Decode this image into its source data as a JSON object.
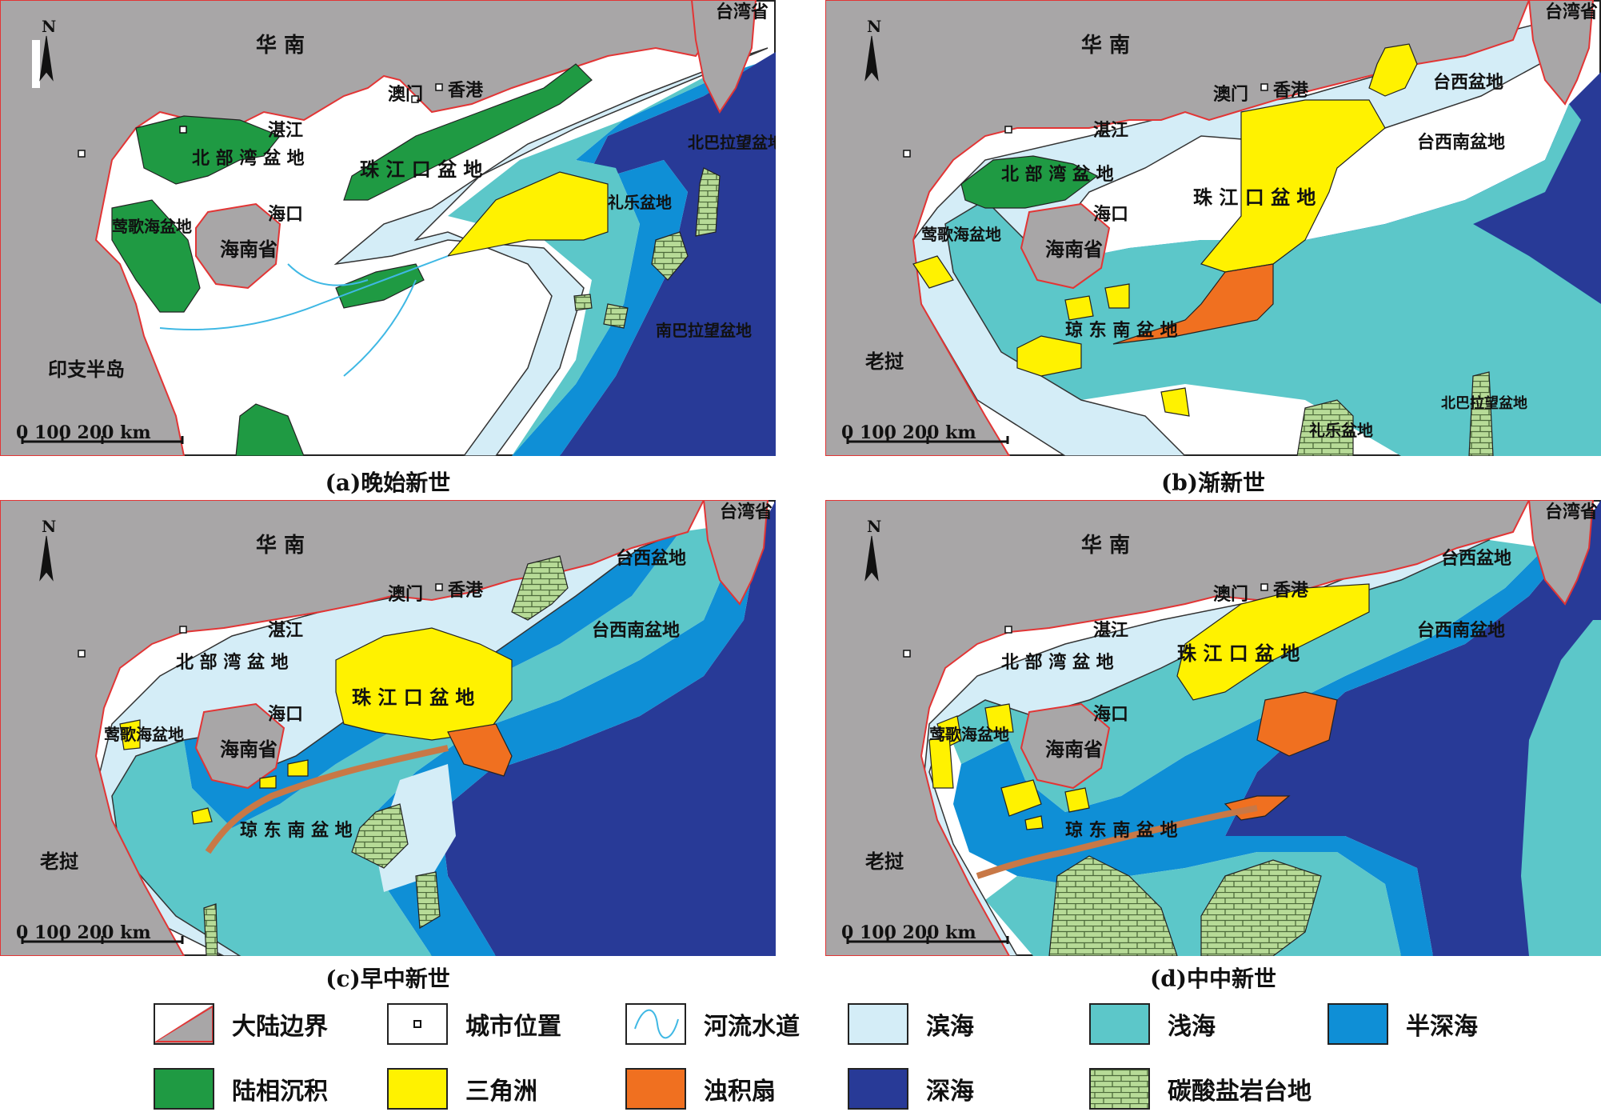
{
  "colors": {
    "land": "#a8a6a7",
    "coastal": "#d4edf7",
    "shallow": "#5cc7c9",
    "semideep": "#0f8fd6",
    "deep": "#283a97",
    "continental": "#1f9a43",
    "delta": "#fff200",
    "turbidite": "#f07020",
    "carbonate": "#b7db97",
    "river": "#3fb8e4",
    "border": "#e23535"
  },
  "panels": [
    {
      "caption": "(a)晚始新世",
      "labels": {
        "south_china": "华 南",
        "hongkong": "香港",
        "macau": "澳门",
        "zhanjiang": "湛江",
        "haikou": "海口",
        "hainan": "海南省",
        "taiwan": "台湾省",
        "indochina": "印支半岛",
        "north_arrow": "N",
        "scale": "0 100 200 km",
        "basin_beibuwan": "北 部 湾 盆 地",
        "basin_pearl": "珠 江 口 盆 地",
        "basin_yinggehai": "莺歌海盆地",
        "basin_lile": "礼乐盆地",
        "basin_nanbala": "南巴拉望盆地",
        "basin_beibala": "北巴拉望盆地"
      }
    },
    {
      "caption": "(b)渐新世",
      "labels": {
        "south_china": "华 南",
        "hongkong": "香港",
        "macau": "澳门",
        "zhanjiang": "湛江",
        "haikou": "海口",
        "hainan": "海南省",
        "taiwan": "台湾省",
        "laos": "老挝",
        "north_arrow": "N",
        "scale": "0 100 200 km",
        "basin_beibuwan": "北 部 湾 盆 地",
        "basin_pearl": "珠 江 口 盆 地",
        "basin_taixi": "台西盆地",
        "basin_taixinan": "台西南盆地",
        "basin_yinggehai": "莺歌海盆地",
        "basin_qiongdongnan": "琼 东 南 盆 地",
        "basin_lile": "礼乐盆地",
        "basin_beibala": "北巴拉望盆地"
      }
    },
    {
      "caption": "(c)早中新世",
      "labels": {
        "south_china": "华 南",
        "hongkong": "香港",
        "macau": "澳门",
        "zhanjiang": "湛江",
        "haikou": "海口",
        "hainan": "海南省",
        "taiwan": "台湾省",
        "laos": "老挝",
        "north_arrow": "N",
        "scale": "0 100 200 km",
        "basin_beibuwan": "北 部 湾 盆 地",
        "basin_pearl": "珠 江 口 盆 地",
        "basin_taixi": "台西盆地",
        "basin_taixinan": "台西南盆地",
        "basin_yinggehai": "莺歌海盆地",
        "basin_qiongdongnan": "琼 东 南 盆 地"
      }
    },
    {
      "caption": "(d)中中新世",
      "labels": {
        "south_china": "华 南",
        "hongkong": "香港",
        "macau": "澳门",
        "zhanjiang": "湛江",
        "haikou": "海口",
        "hainan": "海南省",
        "taiwan": "台湾省",
        "laos": "老挝",
        "north_arrow": "N",
        "scale": "0 100 200 km",
        "basin_beibuwan": "北 部 湾 盆 地",
        "basin_pearl": "珠 江 口 盆 地",
        "basin_taixi": "台西盆地",
        "basin_taixinan": "台西南盆地",
        "basin_yinggehai": "莺歌海盆地",
        "basin_qiongdongnan": "琼 东 南 盆 地"
      }
    }
  ],
  "legend": [
    {
      "key": "land",
      "label": "大陆边界"
    },
    {
      "key": "city",
      "label": "城市位置"
    },
    {
      "key": "river",
      "label": "河流水道"
    },
    {
      "key": "coastal",
      "label": "滨海"
    },
    {
      "key": "shallow",
      "label": "浅海"
    },
    {
      "key": "semideep",
      "label": "半深海"
    },
    {
      "key": "continental",
      "label": "陆相沉积"
    },
    {
      "key": "delta",
      "label": "三角洲"
    },
    {
      "key": "turbidite",
      "label": "浊积扇"
    },
    {
      "key": "deep",
      "label": "深海"
    },
    {
      "key": "carbonate",
      "label": "碳酸盐岩台地"
    }
  ]
}
